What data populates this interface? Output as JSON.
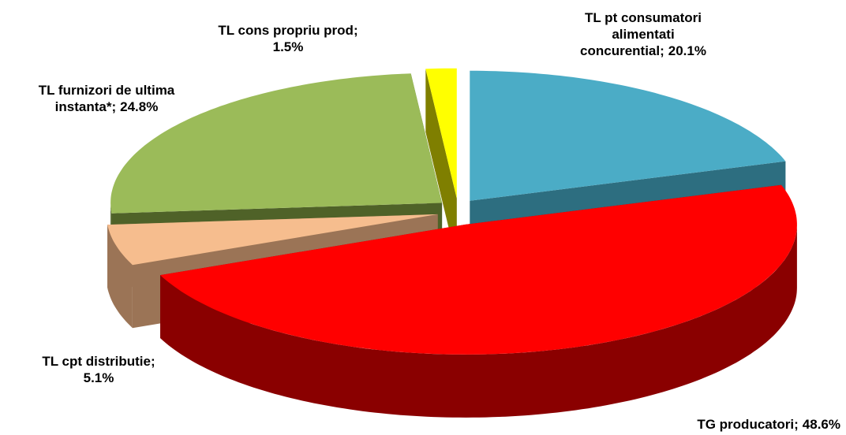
{
  "chart_data": {
    "type": "pie3d",
    "categories": [
      "TL pt consumatori\nalimentati\nconcurential;",
      "TG producatori;",
      "TL cpt distributie;",
      "TL furnizori de ultima\ninstanta*;",
      "TL cons propriu prod;"
    ],
    "values": [
      20.1,
      48.6,
      5.1,
      24.8,
      1.5
    ],
    "value_labels": [
      "20.1%",
      "48.6%",
      "5.1%",
      "24.8%",
      "1.5%"
    ],
    "colors": [
      "#4bacc6",
      "#ff0000",
      "#f6bd8e",
      "#9bbb59",
      "#ffff00"
    ],
    "side_colors": [
      "#2d6e80",
      "#8a0000",
      "#9b7456",
      "#4f6228",
      "#7f7f00"
    ]
  }
}
